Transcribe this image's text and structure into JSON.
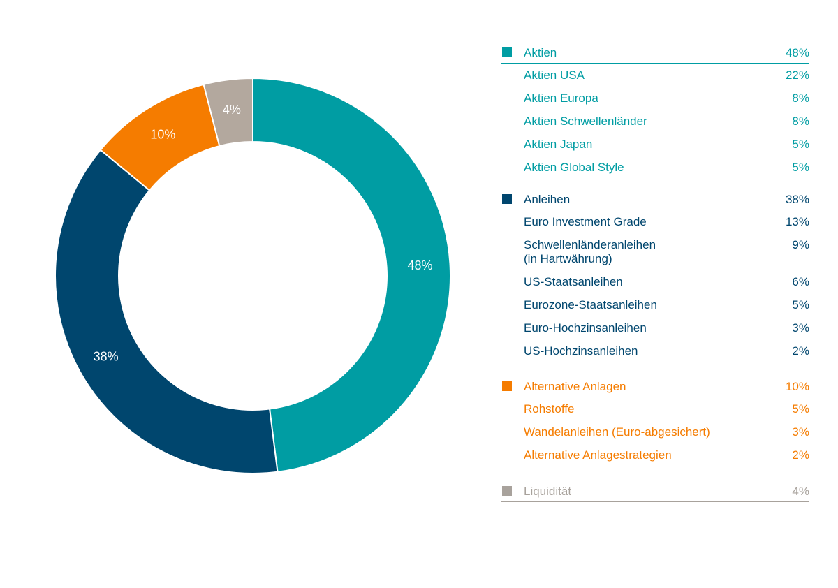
{
  "chart_data": {
    "type": "pie",
    "donut": true,
    "slices": [
      {
        "label": "Aktien",
        "value": 48,
        "text": "48%",
        "color": "#009da3"
      },
      {
        "label": "Anleihen",
        "value": 38,
        "text": "38%",
        "color": "#00466e"
      },
      {
        "label": "Alternative Anlagen",
        "value": 10,
        "text": "10%",
        "color": "#f57c00"
      },
      {
        "label": "Liquidität",
        "value": 4,
        "text": "4%",
        "color": "#b3a89e"
      }
    ]
  },
  "legend": [
    {
      "name": "Aktien",
      "value": "48%",
      "color": "#009da3",
      "items": [
        {
          "label": "Aktien USA",
          "value": "22%"
        },
        {
          "label": "Aktien Europa",
          "value": "8%"
        },
        {
          "label": "Aktien Schwellenländer",
          "value": "8%"
        },
        {
          "label": "Aktien Japan",
          "value": "5%"
        },
        {
          "label": "Aktien Global Style",
          "value": "5%"
        }
      ]
    },
    {
      "name": "Anleihen",
      "value": "38%",
      "color": "#00466e",
      "items": [
        {
          "label": "Euro Investment Grade",
          "value": "13%"
        },
        {
          "label": "Schwellenländeranleihen\n(in Hartwährung)",
          "value": "9%"
        },
        {
          "label": "US-Staatsanleihen",
          "value": "6%"
        },
        {
          "label": "Eurozone-Staatsanleihen",
          "value": "5%"
        },
        {
          "label": "Euro-Hochzinsanleihen",
          "value": "3%"
        },
        {
          "label": "US-Hochzinsanleihen",
          "value": "2%"
        }
      ]
    },
    {
      "name": "Alternative Anlagen",
      "value": "10%",
      "color": "#f57c00",
      "items": [
        {
          "label": "Rohstoffe",
          "value": "5%"
        },
        {
          "label": "Wandelanleihen (Euro-abgesichert)",
          "value": "3%"
        },
        {
          "label": "Alternative Anlagestrategien",
          "value": "2%"
        }
      ]
    },
    {
      "name": "Liquidität",
      "value": "4%",
      "color": "#a8a29c",
      "items": []
    }
  ]
}
